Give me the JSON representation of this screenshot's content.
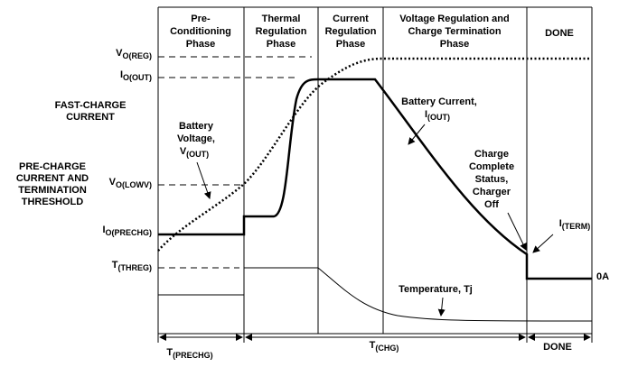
{
  "phases": [
    {
      "lines": [
        "Pre-",
        "Conditioning",
        "Phase"
      ]
    },
    {
      "lines": [
        "Thermal",
        "Regulation",
        "Phase"
      ]
    },
    {
      "lines": [
        "Current",
        "Regulation",
        "Phase"
      ]
    },
    {
      "lines": [
        "Voltage Regulation and",
        "Charge Termination",
        "Phase"
      ]
    },
    {
      "lines": [
        "DONE"
      ]
    }
  ],
  "levels": {
    "vo_reg": {
      "main": "V",
      "sub": "O(REG)"
    },
    "io_out": {
      "main": "I",
      "sub": "O(OUT)"
    },
    "vo_lowv": {
      "main": "V",
      "sub": "O(LOWV)"
    },
    "io_prechg": {
      "main": "I",
      "sub": "O(PRECHG)"
    },
    "t_threg": {
      "main": "T",
      "sub": "(THREG)"
    }
  },
  "side_notes": {
    "fast_charge": [
      "FAST-CHARGE",
      "CURRENT"
    ],
    "pre_charge": [
      "PRE-CHARGE",
      "CURRENT AND",
      "TERMINATION",
      "THRESHOLD"
    ]
  },
  "annotations": {
    "battery_voltage": {
      "lines": [
        "Battery",
        "Voltage,"
      ],
      "main": "V",
      "sub": "(OUT)"
    },
    "battery_current": {
      "lines": [
        "Battery Current,"
      ],
      "main": "I",
      "sub": "(OUT)"
    },
    "charge_complete": [
      "Charge",
      "Complete",
      "Status,",
      "Charger",
      "Off"
    ],
    "i_term": {
      "main": "I",
      "sub": "(TERM)"
    },
    "zero_a": "0A",
    "temperature": "Temperature,   Tj"
  },
  "timeline": {
    "t_prechg": {
      "main": "T",
      "sub": "(PRECHG)"
    },
    "t_chg": {
      "main": "T",
      "sub": "(CHG)"
    },
    "done": "DONE"
  }
}
